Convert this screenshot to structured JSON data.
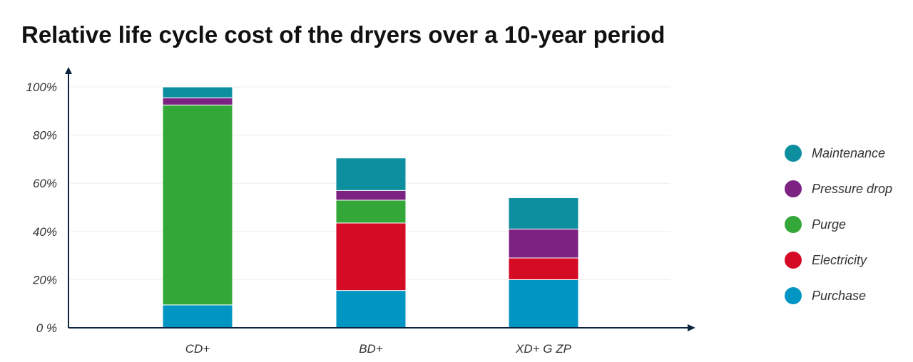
{
  "chart_data": {
    "type": "bar",
    "stacked": true,
    "title": "Relative life cycle cost of the dryers over a 10-year period",
    "xlabel": "",
    "ylabel": "",
    "ylim": [
      0,
      100
    ],
    "yticks": [
      0,
      20,
      40,
      60,
      80,
      100
    ],
    "ytick_labels": [
      "0 %",
      "20%",
      "40%",
      "60%",
      "80%",
      "100%"
    ],
    "categories": [
      "CD+",
      "BD+",
      "XD+ G ZP"
    ],
    "series": [
      {
        "name": "Purchase",
        "color": "#0095C3",
        "values": [
          9.5,
          15.5,
          20
        ]
      },
      {
        "name": "Electricity",
        "color": "#D50A25",
        "values": [
          0,
          28,
          9
        ]
      },
      {
        "name": "Purge",
        "color": "#33A838",
        "values": [
          83,
          9.5,
          0
        ]
      },
      {
        "name": "Pressure drop",
        "color": "#7B2282",
        "values": [
          3,
          4,
          12
        ]
      },
      {
        "name": "Maintenance",
        "color": "#0E8FA0",
        "values": [
          4.5,
          13.5,
          13
        ]
      }
    ],
    "legend": [
      "Maintenance",
      "Pressure drop",
      "Purge",
      "Electricity",
      "Purchase"
    ],
    "legend_position": "right",
    "grid": true
  }
}
